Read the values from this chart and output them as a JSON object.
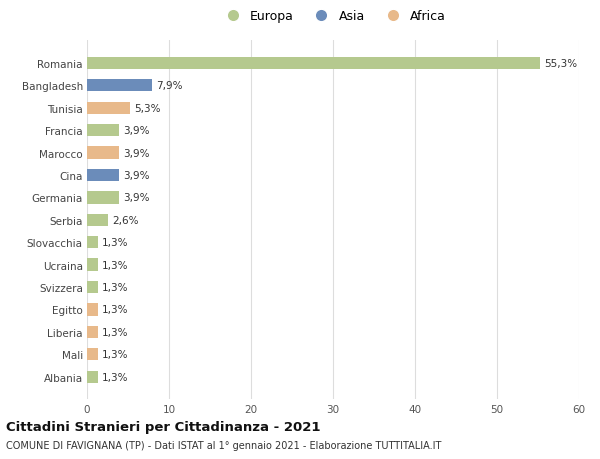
{
  "categories": [
    "Romania",
    "Bangladesh",
    "Tunisia",
    "Francia",
    "Marocco",
    "Cina",
    "Germania",
    "Serbia",
    "Slovacchia",
    "Ucraina",
    "Svizzera",
    "Egitto",
    "Liberia",
    "Mali",
    "Albania"
  ],
  "values": [
    55.3,
    7.9,
    5.3,
    3.9,
    3.9,
    3.9,
    3.9,
    2.6,
    1.3,
    1.3,
    1.3,
    1.3,
    1.3,
    1.3,
    1.3
  ],
  "labels": [
    "55,3%",
    "7,9%",
    "5,3%",
    "3,9%",
    "3,9%",
    "3,9%",
    "3,9%",
    "2,6%",
    "1,3%",
    "1,3%",
    "1,3%",
    "1,3%",
    "1,3%",
    "1,3%",
    "1,3%"
  ],
  "continents": [
    "Europa",
    "Asia",
    "Africa",
    "Europa",
    "Africa",
    "Asia",
    "Europa",
    "Europa",
    "Europa",
    "Europa",
    "Europa",
    "Africa",
    "Africa",
    "Africa",
    "Europa"
  ],
  "colors": {
    "Europa": "#b5c98e",
    "Asia": "#6b8cba",
    "Africa": "#e8b98a"
  },
  "xlim": [
    0,
    60
  ],
  "xticks": [
    0,
    10,
    20,
    30,
    40,
    50,
    60
  ],
  "title": "Cittadini Stranieri per Cittadinanza - 2021",
  "subtitle": "COMUNE DI FAVIGNANA (TP) - Dati ISTAT al 1° gennaio 2021 - Elaborazione TUTTITALIA.IT",
  "background_color": "#ffffff",
  "grid_color": "#dddddd",
  "bar_height": 0.55,
  "label_fontsize": 7.5,
  "tick_fontsize": 7.5,
  "legend_fontsize": 9.0,
  "title_fontsize": 9.5,
  "subtitle_fontsize": 7.0
}
